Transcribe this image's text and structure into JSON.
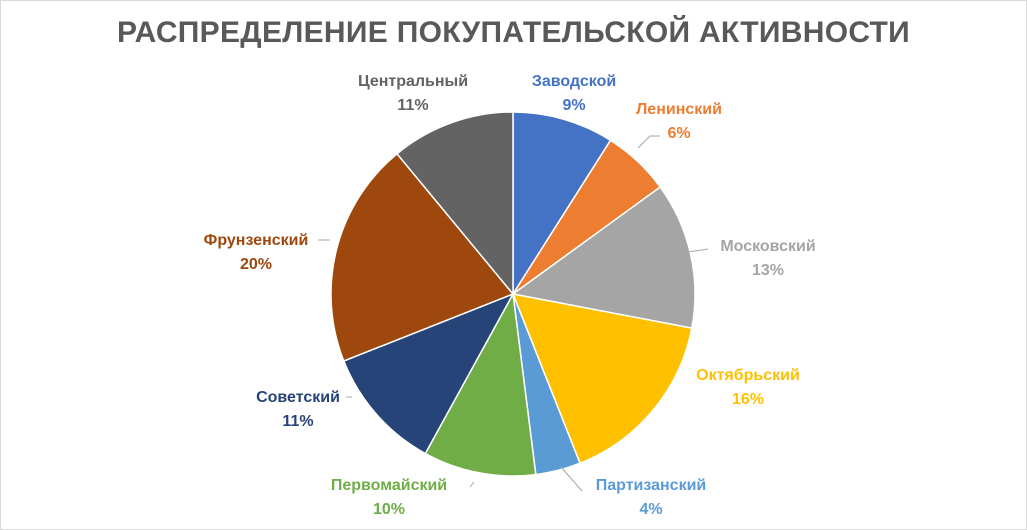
{
  "chart_data": {
    "type": "pie",
    "title": "РАСПРЕДЕЛЕНИЕ ПОКУПАТЕЛЬСКОЙ АКТИВНОСТИ",
    "categories": [
      "Заводской",
      "Ленинский",
      "Московский",
      "Октябрьский",
      "Партизанский",
      "Первомайский",
      "Советский",
      "Фрунзенский",
      "Центральный"
    ],
    "values": [
      9,
      6,
      13,
      16,
      4,
      10,
      11,
      20,
      11
    ],
    "labels": [
      "9%",
      "6%",
      "13%",
      "16%",
      "4%",
      "10%",
      "11%",
      "20%",
      "11%"
    ],
    "colors": [
      "#4472C4",
      "#ED7D31",
      "#A5A5A5",
      "#FFC000",
      "#5B9BD5",
      "#70AD47",
      "#264478",
      "#9E480E",
      "#636363"
    ],
    "start": "12 o'clock",
    "direction": "clockwise",
    "legend": "none",
    "data_labels": "outside, category name and percent"
  }
}
